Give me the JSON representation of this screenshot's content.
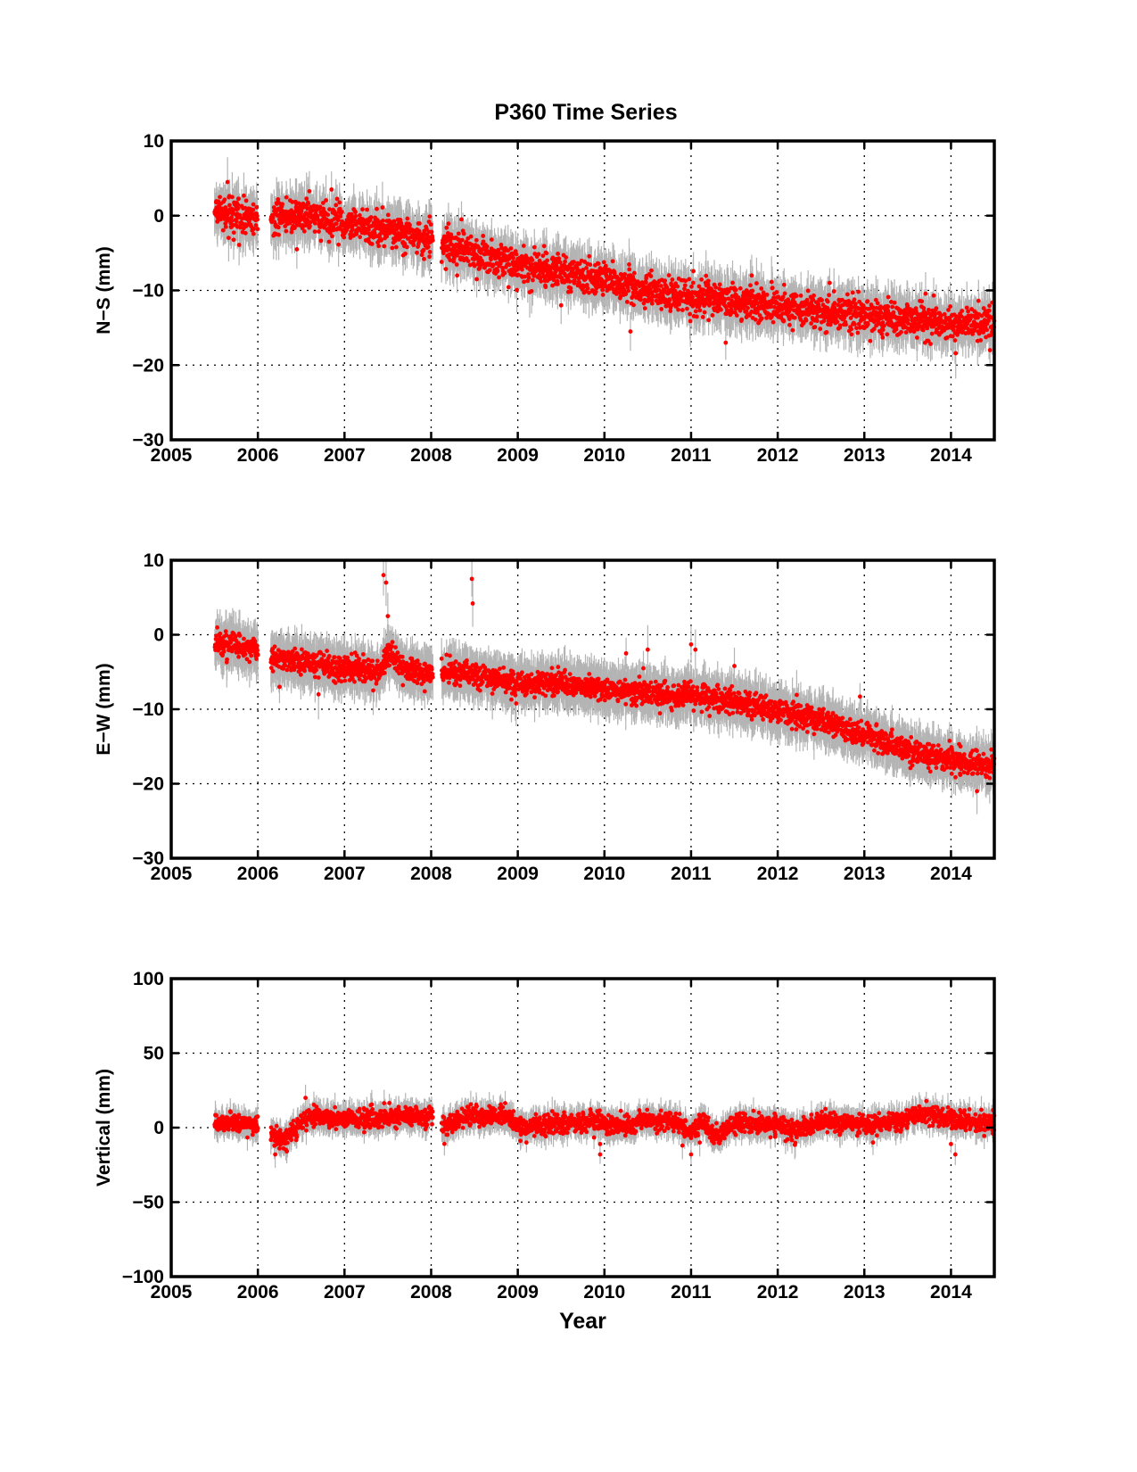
{
  "figure_title": "P360 Time Series",
  "chart_data": [
    {
      "type": "scatter",
      "ylabel": "N−S (mm)",
      "xlabel": "",
      "xlim": [
        2005,
        2014.5
      ],
      "ylim": [
        -30,
        10
      ],
      "x_ticks": [
        2005,
        2006,
        2007,
        2008,
        2009,
        2010,
        2011,
        2012,
        2013,
        2014
      ],
      "x_tick_labels": [
        "2005",
        "2006",
        "2007",
        "2008",
        "2009",
        "2010",
        "2011",
        "2012",
        "2013",
        "2014"
      ],
      "y_ticks": [
        10,
        0,
        -10,
        -20,
        -30
      ],
      "y_tick_labels": [
        "10",
        "0",
        "−10",
        "−20",
        "−30"
      ],
      "grid": true,
      "marker_color": "#ff0000",
      "errorbar_color": "#b4b4b4",
      "trend": [
        [
          2005.5,
          0.5
        ],
        [
          2006.0,
          -0.5
        ],
        [
          2006.2,
          -0.3
        ],
        [
          2006.6,
          0.0
        ],
        [
          2007.0,
          -1.0
        ],
        [
          2007.5,
          -2.0
        ],
        [
          2008.0,
          -3.2
        ],
        [
          2008.15,
          -3.8
        ],
        [
          2008.5,
          -5.0
        ],
        [
          2009.0,
          -6.5
        ],
        [
          2009.5,
          -7.5
        ],
        [
          2010.0,
          -8.5
        ],
        [
          2010.5,
          -10.0
        ],
        [
          2011.0,
          -11.0
        ],
        [
          2011.5,
          -11.5
        ],
        [
          2012.0,
          -12.0
        ],
        [
          2012.5,
          -12.8
        ],
        [
          2013.0,
          -13.3
        ],
        [
          2013.5,
          -14.0
        ],
        [
          2014.0,
          -14.5
        ],
        [
          2014.5,
          -14.3
        ]
      ],
      "outliers": [
        [
          2005.65,
          4.5
        ],
        [
          2006.45,
          -4.5
        ],
        [
          2006.85,
          3.5
        ],
        [
          2008.35,
          -0.5
        ],
        [
          2008.3,
          -8.0
        ],
        [
          2009.5,
          -12.0
        ],
        [
          2010.3,
          -15.5
        ],
        [
          2011.4,
          -17.0
        ],
        [
          2011.7,
          -8.0
        ],
        [
          2012.6,
          -9.0
        ],
        [
          2013.7,
          -17.0
        ],
        [
          2014.45,
          -18.0
        ]
      ],
      "gaps": [
        [
          2006.0,
          2006.15
        ],
        [
          2008.02,
          2008.12
        ]
      ],
      "scatter_sd": 1.1,
      "errorbar_half": 2.5
    },
    {
      "type": "scatter",
      "ylabel": "E−W (mm)",
      "xlabel": "",
      "xlim": [
        2005,
        2014.5
      ],
      "ylim": [
        -30,
        10
      ],
      "x_ticks": [
        2005,
        2006,
        2007,
        2008,
        2009,
        2010,
        2011,
        2012,
        2013,
        2014
      ],
      "x_tick_labels": [
        "2005",
        "2006",
        "2007",
        "2008",
        "2009",
        "2010",
        "2011",
        "2012",
        "2013",
        "2014"
      ],
      "y_ticks": [
        10,
        0,
        -10,
        -20,
        -30
      ],
      "y_tick_labels": [
        "10",
        "0",
        "−10",
        "−20",
        "−30"
      ],
      "grid": true,
      "marker_color": "#ff0000",
      "errorbar_color": "#b4b4b4",
      "trend": [
        [
          2005.5,
          -1.0
        ],
        [
          2006.0,
          -2.0
        ],
        [
          2006.2,
          -3.0
        ],
        [
          2006.6,
          -3.8
        ],
        [
          2007.0,
          -4.5
        ],
        [
          2007.4,
          -5.0
        ],
        [
          2007.5,
          -2.5
        ],
        [
          2007.7,
          -4.5
        ],
        [
          2008.0,
          -5.5
        ],
        [
          2008.15,
          -4.8
        ],
        [
          2008.5,
          -5.5
        ],
        [
          2009.0,
          -6.5
        ],
        [
          2009.5,
          -6.5
        ],
        [
          2010.0,
          -7.2
        ],
        [
          2010.5,
          -8.0
        ],
        [
          2011.0,
          -8.0
        ],
        [
          2011.5,
          -9.0
        ],
        [
          2012.0,
          -10.2
        ],
        [
          2012.5,
          -11.5
        ],
        [
          2013.0,
          -13.5
        ],
        [
          2013.5,
          -15.5
        ],
        [
          2014.0,
          -17.0
        ],
        [
          2014.5,
          -17.8
        ]
      ],
      "outliers": [
        [
          2007.45,
          8.0
        ],
        [
          2007.48,
          7.0
        ],
        [
          2007.5,
          2.5
        ],
        [
          2008.47,
          7.5
        ],
        [
          2008.48,
          4.2
        ],
        [
          2006.25,
          -7.0
        ],
        [
          2006.7,
          -8.0
        ],
        [
          2010.25,
          -2.5
        ],
        [
          2010.5,
          -2.0
        ],
        [
          2010.45,
          -4.5
        ],
        [
          2011.0,
          -1.3
        ],
        [
          2011.05,
          -2.0
        ],
        [
          2011.5,
          -4.2
        ],
        [
          2012.95,
          -8.3
        ],
        [
          2014.3,
          -21.0
        ]
      ],
      "gaps": [
        [
          2006.0,
          2006.15
        ],
        [
          2008.02,
          2008.12
        ]
      ],
      "scatter_sd": 0.8,
      "errorbar_half": 2.5
    },
    {
      "type": "scatter",
      "ylabel": "Vertical (mm)",
      "xlabel": "Year",
      "xlim": [
        2005,
        2014.5
      ],
      "ylim": [
        -100,
        100
      ],
      "x_ticks": [
        2005,
        2006,
        2007,
        2008,
        2009,
        2010,
        2011,
        2012,
        2013,
        2014
      ],
      "x_tick_labels": [
        "2005",
        "2006",
        "2007",
        "2008",
        "2009",
        "2010",
        "2011",
        "2012",
        "2013",
        "2014"
      ],
      "y_ticks": [
        100,
        50,
        0,
        -50,
        -100
      ],
      "y_tick_labels": [
        "100",
        "50",
        "0",
        "−50",
        "−100"
      ],
      "grid": true,
      "marker_color": "#ff0000",
      "errorbar_color": "#b4b4b4",
      "trend": [
        [
          2005.5,
          4.0
        ],
        [
          2006.0,
          2.0
        ],
        [
          2006.15,
          -5.0
        ],
        [
          2006.3,
          -8.0
        ],
        [
          2006.6,
          8.0
        ],
        [
          2007.0,
          6.0
        ],
        [
          2007.5,
          6.0
        ],
        [
          2008.0,
          8.0
        ],
        [
          2008.15,
          0.0
        ],
        [
          2008.4,
          8.0
        ],
        [
          2008.9,
          8.0
        ],
        [
          2009.0,
          0.0
        ],
        [
          2009.5,
          3.0
        ],
        [
          2009.9,
          5.0
        ],
        [
          2010.1,
          0.0
        ],
        [
          2010.5,
          5.0
        ],
        [
          2010.8,
          4.0
        ],
        [
          2011.0,
          -2.0
        ],
        [
          2011.15,
          4.0
        ],
        [
          2011.3,
          -7.0
        ],
        [
          2011.5,
          3.0
        ],
        [
          2012.0,
          2.0
        ],
        [
          2012.2,
          -2.0
        ],
        [
          2012.5,
          4.0
        ],
        [
          2013.0,
          2.0
        ],
        [
          2013.4,
          4.0
        ],
        [
          2013.7,
          10.0
        ],
        [
          2014.0,
          5.0
        ],
        [
          2014.5,
          3.0
        ]
      ],
      "outliers": [
        [
          2006.2,
          -18.0
        ],
        [
          2006.55,
          20.0
        ],
        [
          2009.1,
          -10.0
        ],
        [
          2009.95,
          -18.0
        ],
        [
          2009.95,
          -11.0
        ],
        [
          2010.9,
          -12.0
        ],
        [
          2011.0,
          -18.0
        ],
        [
          2011.1,
          -10.0
        ],
        [
          2013.1,
          -10.0
        ],
        [
          2014.05,
          -18.0
        ],
        [
          2014.0,
          -11.0
        ]
      ],
      "gaps": [
        [
          2006.0,
          2006.15
        ],
        [
          2008.02,
          2008.12
        ]
      ],
      "scatter_sd": 3.2,
      "errorbar_half": 7.0
    }
  ]
}
